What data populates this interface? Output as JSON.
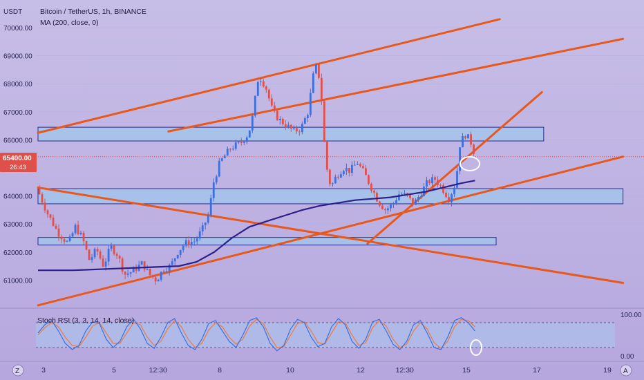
{
  "header": {
    "currency": "USDT",
    "symbol_line": "Bitcoin / TetherUS, 1h, BINANCE",
    "indicator_line": "MA (200, close, 0)"
  },
  "price_badge": {
    "price": "65400.00",
    "countdown": "26:43"
  },
  "stoch_panel": {
    "label": "Stoch RSI (3, 3, 14, 14, close)",
    "top_label": "100.00",
    "bottom_label": "0.00"
  },
  "footer": {
    "left_icon": "Z",
    "right_icon": "A"
  },
  "colors": {
    "bg_top": "#c6bde6",
    "bg_bottom": "#b8aadf",
    "bull": "#3b6fe0",
    "bear": "#e0504a",
    "trendline": "#e8581a",
    "ma": "#2c1f8a",
    "zone_fill": "#9ec8ec",
    "zone_border": "#2a2a8a",
    "stoch_k": "#3a6fe0",
    "stoch_d": "#f07a3a",
    "highlight": "#ffffff"
  },
  "chart_data": {
    "type": "candlestick",
    "title": "Bitcoin / TetherUS, 1h, BINANCE",
    "y_axis": {
      "ticks": [
        "70000.00",
        "69000.00",
        "68000.00",
        "67000.00",
        "66000.00",
        "64000.00",
        "63000.00",
        "62000.00",
        "61000.00"
      ],
      "range": [
        60200,
        70200
      ]
    },
    "x_axis": {
      "ticks": [
        "3",
        "5",
        "12:30",
        "8",
        "10",
        "12",
        "12:30",
        "15",
        "17",
        "19"
      ],
      "tick_positions_date_units": [
        0,
        2,
        3.25,
        5,
        7,
        9,
        10.25,
        12,
        14,
        16
      ]
    },
    "price_path": [
      [
        0.0,
        64300
      ],
      [
        0.3,
        63400
      ],
      [
        0.6,
        62700
      ],
      [
        0.9,
        62300
      ],
      [
        1.1,
        62900
      ],
      [
        1.3,
        62500
      ],
      [
        1.5,
        61700
      ],
      [
        1.7,
        62100
      ],
      [
        1.9,
        61500
      ],
      [
        2.1,
        62200
      ],
      [
        2.3,
        61900
      ],
      [
        2.5,
        61200
      ],
      [
        2.7,
        61300
      ],
      [
        3.0,
        61600
      ],
      [
        3.2,
        61200
      ],
      [
        3.4,
        61000
      ],
      [
        3.6,
        61400
      ],
      [
        3.8,
        61500
      ],
      [
        4.0,
        62000
      ],
      [
        4.2,
        62300
      ],
      [
        4.5,
        62400
      ],
      [
        4.7,
        62800
      ],
      [
        4.9,
        63400
      ],
      [
        5.0,
        64400
      ],
      [
        5.2,
        65200
      ],
      [
        5.5,
        65700
      ],
      [
        5.8,
        65900
      ],
      [
        6.0,
        66200
      ],
      [
        6.1,
        66600
      ],
      [
        6.3,
        68300
      ],
      [
        6.5,
        67900
      ],
      [
        6.7,
        67000
      ],
      [
        6.9,
        66700
      ],
      [
        7.1,
        66500
      ],
      [
        7.3,
        66300
      ],
      [
        7.5,
        66400
      ],
      [
        7.7,
        67000
      ],
      [
        7.9,
        68700
      ],
      [
        8.05,
        68100
      ],
      [
        8.2,
        65200
      ],
      [
        8.35,
        64300
      ],
      [
        8.5,
        64700
      ],
      [
        8.7,
        65000
      ],
      [
        8.9,
        64900
      ],
      [
        9.1,
        65200
      ],
      [
        9.3,
        64800
      ],
      [
        9.5,
        64300
      ],
      [
        9.7,
        63800
      ],
      [
        9.9,
        63500
      ],
      [
        10.1,
        63700
      ],
      [
        10.3,
        64100
      ],
      [
        10.5,
        64000
      ],
      [
        10.7,
        63700
      ],
      [
        10.9,
        64100
      ],
      [
        11.1,
        64500
      ],
      [
        11.3,
        64600
      ],
      [
        11.5,
        64300
      ],
      [
        11.7,
        63900
      ],
      [
        11.9,
        64500
      ],
      [
        12.0,
        65800
      ],
      [
        12.15,
        66200
      ],
      [
        12.3,
        66000
      ],
      [
        12.4,
        65600
      ]
    ],
    "moving_average": {
      "name": "MA (200, close, 0)",
      "points": [
        [
          0,
          61350
        ],
        [
          1,
          61350
        ],
        [
          2,
          61400
        ],
        [
          3,
          61450
        ],
        [
          4,
          61500
        ],
        [
          4.5,
          61650
        ],
        [
          5,
          62000
        ],
        [
          5.5,
          62500
        ],
        [
          6,
          62900
        ],
        [
          6.5,
          63100
        ],
        [
          7,
          63300
        ],
        [
          7.5,
          63500
        ],
        [
          8,
          63650
        ],
        [
          8.5,
          63750
        ],
        [
          9,
          63850
        ],
        [
          9.5,
          63900
        ],
        [
          10,
          63950
        ],
        [
          10.5,
          64050
        ],
        [
          11,
          64150
        ],
        [
          11.5,
          64300
        ],
        [
          12,
          64450
        ],
        [
          12.4,
          64550
        ]
      ]
    },
    "trendlines": [
      {
        "from": [
          0,
          66250
        ],
        "to": [
          13.1,
          70300
        ]
      },
      {
        "from": [
          0,
          60100
        ],
        "to": [
          16.6,
          65400
        ]
      },
      {
        "from": [
          0,
          64300
        ],
        "to": [
          16.6,
          60900
        ]
      },
      {
        "from": [
          3.7,
          66300
        ],
        "to": [
          16.6,
          69600
        ]
      },
      {
        "from": [
          9.35,
          62300
        ],
        "to": [
          14.3,
          67700
        ]
      }
    ],
    "zones": [
      {
        "from_x": 0,
        "to_x": 14.35,
        "low": 65960,
        "high": 66450
      },
      {
        "from_x": 0,
        "to_x": 16.6,
        "low": 63720,
        "high": 64260
      },
      {
        "from_x": 0,
        "to_x": 13.0,
        "low": 62250,
        "high": 62520
      }
    ],
    "current_price_line": 65400,
    "stoch_rsi": {
      "name": "Stoch RSI (3, 3, 14, 14, close)",
      "range": [
        0,
        100
      ],
      "upper_band": 80,
      "lower_band": 20,
      "k": [
        55,
        75,
        85,
        60,
        30,
        15,
        25,
        60,
        82,
        78,
        40,
        20,
        35,
        70,
        88,
        65,
        30,
        18,
        45,
        80,
        90,
        55,
        25,
        15,
        40,
        78,
        85,
        60,
        35,
        20,
        50,
        85,
        92,
        70,
        30,
        12,
        25,
        65,
        88,
        80,
        45,
        22,
        30,
        70,
        90,
        75,
        35,
        18,
        40,
        82,
        88,
        60,
        28,
        15,
        35,
        75,
        85,
        55,
        20,
        15,
        45,
        85,
        92,
        80,
        60
      ],
      "d": [
        50,
        68,
        80,
        70,
        45,
        25,
        22,
        45,
        72,
        80,
        55,
        30,
        30,
        55,
        80,
        75,
        45,
        25,
        35,
        65,
        85,
        70,
        40,
        20,
        30,
        62,
        80,
        70,
        45,
        28,
        40,
        72,
        88,
        78,
        45,
        20,
        22,
        50,
        78,
        82,
        60,
        32,
        28,
        55,
        82,
        80,
        50,
        25,
        32,
        68,
        85,
        72,
        40,
        20,
        28,
        60,
        80,
        65,
        32,
        18,
        35,
        70,
        88,
        85,
        70
      ]
    }
  }
}
